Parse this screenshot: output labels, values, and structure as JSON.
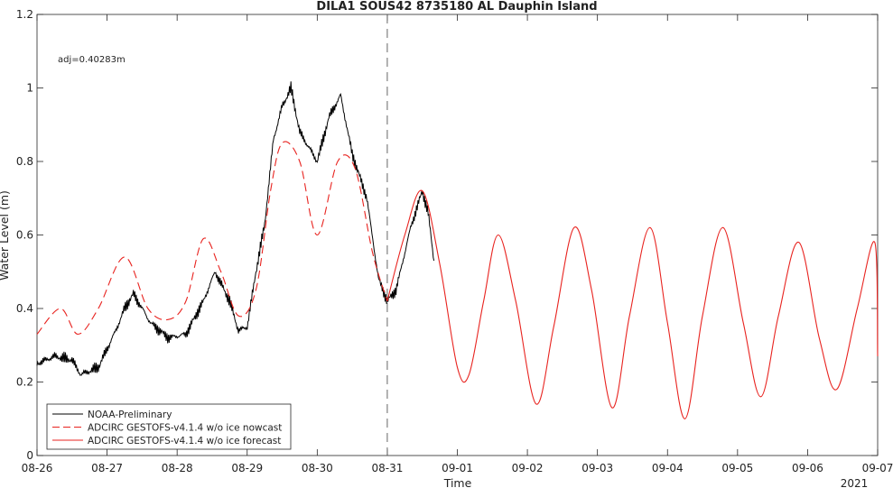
{
  "chart_data": {
    "type": "line",
    "title": "DILA1 SOUS42 8735180 AL Dauphin Island",
    "xlabel": "Time",
    "ylabel": "Water Level (m)",
    "annotation": "adj=0.40283m",
    "year_label": "2021",
    "xlim": [
      "08-26",
      "09-07"
    ],
    "ylim": [
      0,
      1.2
    ],
    "x_ticks": [
      "08-26",
      "08-27",
      "08-28",
      "08-29",
      "08-30",
      "08-31",
      "09-01",
      "09-02",
      "09-03",
      "09-04",
      "09-05",
      "09-06",
      "09-07"
    ],
    "y_ticks": [
      "0",
      "0.2",
      "0.4",
      "0.6",
      "0.8",
      "1",
      "1.2"
    ],
    "nowcast_divider_day": "08-31",
    "legend_position": "bottom-left",
    "legend": [
      {
        "label": "NOAA-Preliminary",
        "color": "#000000",
        "style": "solid"
      },
      {
        "label": "ADCIRC GESTOFS-v4.1.4 w/o ice nowcast",
        "color": "#e8231f",
        "style": "dashed"
      },
      {
        "label": "ADCIRC GESTOFS-v4.1.4 w/o ice forecast",
        "color": "#e8231f",
        "style": "solid"
      }
    ],
    "series": [
      {
        "name": "NOAA-Preliminary",
        "x": [
          "08-26 00:00",
          "08-26 06:00",
          "08-26 12:00",
          "08-26 15:00",
          "08-26 21:00",
          "08-27 03:00",
          "08-27 06:00",
          "08-27 09:00",
          "08-27 15:00",
          "08-27 21:00",
          "08-28 03:00",
          "08-28 09:00",
          "08-28 13:00",
          "08-28 18:00",
          "08-28 21:00",
          "08-29 00:00",
          "08-29 03:00",
          "08-29 06:00",
          "08-29 09:00",
          "08-29 12:00",
          "08-29 15:00",
          "08-29 18:00",
          "08-30 00:00",
          "08-30 04:00",
          "08-30 08:00",
          "08-30 12:00",
          "08-30 17:00",
          "08-30 21:00",
          "08-31 00:00",
          "08-31 03:00",
          "08-31 08:00",
          "08-31 12:00",
          "08-31 14:00",
          "08-31 16:00"
        ],
        "y": [
          0.25,
          0.27,
          0.26,
          0.22,
          0.24,
          0.34,
          0.4,
          0.44,
          0.36,
          0.32,
          0.33,
          0.42,
          0.5,
          0.42,
          0.34,
          0.35,
          0.5,
          0.63,
          0.86,
          0.95,
          1.0,
          0.88,
          0.8,
          0.92,
          0.98,
          0.82,
          0.7,
          0.48,
          0.42,
          0.45,
          0.62,
          0.72,
          0.66,
          0.53
        ]
      },
      {
        "name": "ADCIRC GESTOFS-v4.1.4 w/o ice nowcast",
        "x": [
          "08-26 00:00",
          "08-26 08:00",
          "08-26 14:00",
          "08-26 21:00",
          "08-27 06:00",
          "08-27 14:00",
          "08-27 21:00",
          "08-28 03:00",
          "08-28 09:00",
          "08-28 15:00",
          "08-28 21:00",
          "08-29 03:00",
          "08-29 08:00",
          "08-29 12:00",
          "08-29 18:00",
          "08-30 00:00",
          "08-30 07:00",
          "08-30 13:00",
          "08-30 19:00",
          "08-31 00:00"
        ],
        "y": [
          0.33,
          0.4,
          0.33,
          0.4,
          0.54,
          0.4,
          0.37,
          0.42,
          0.59,
          0.5,
          0.38,
          0.45,
          0.72,
          0.85,
          0.8,
          0.6,
          0.8,
          0.78,
          0.55,
          0.42
        ]
      },
      {
        "name": "ADCIRC GESTOFS-v4.1.4 w/o ice forecast",
        "x": [
          "08-31 00:00",
          "08-31 06:00",
          "08-31 12:00",
          "08-31 18:00",
          "09-01 00:00",
          "09-01 04:00",
          "09-01 09:00",
          "09-01 14:00",
          "09-01 20:00",
          "09-02 03:00",
          "09-02 09:00",
          "09-02 16:00",
          "09-02 22:00",
          "09-03 05:00",
          "09-03 11:00",
          "09-03 18:00",
          "09-04 00:00",
          "09-04 06:00",
          "09-04 12:00",
          "09-04 19:00",
          "09-05 02:00",
          "09-05 08:00",
          "09-05 14:00",
          "09-05 21:00",
          "09-06 04:00",
          "09-06 10:00",
          "09-06 17:00",
          "09-06 23:00",
          "09-07 00:00"
        ],
        "y": [
          0.42,
          0.6,
          0.72,
          0.52,
          0.24,
          0.22,
          0.42,
          0.6,
          0.42,
          0.14,
          0.35,
          0.62,
          0.45,
          0.13,
          0.38,
          0.62,
          0.36,
          0.1,
          0.38,
          0.62,
          0.36,
          0.16,
          0.38,
          0.58,
          0.32,
          0.18,
          0.4,
          0.58,
          0.27
        ]
      }
    ]
  }
}
